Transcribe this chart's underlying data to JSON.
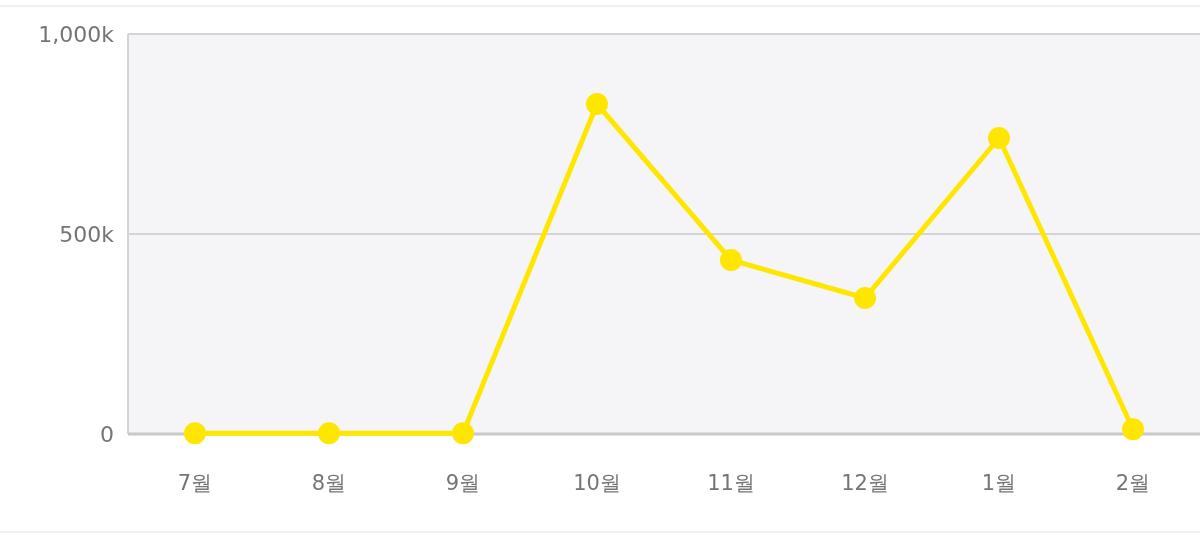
{
  "chart_data": {
    "type": "line",
    "categories": [
      "7월",
      "8월",
      "9월",
      "10월",
      "11월",
      "12월",
      "1월",
      "2월"
    ],
    "series": [
      {
        "color": "#ffe600",
        "values": [
          2000,
          2000,
          2000,
          825000,
          435000,
          340000,
          740000,
          12000
        ]
      }
    ],
    "ylim": [
      0,
      1000000
    ],
    "yticks": [
      0,
      {
        "value": 500000,
        "label": "500k"
      },
      {
        "value": 1000000,
        "label": "1,000k"
      }
    ],
    "grid": "y",
    "marker": "circle",
    "line_style": "solid"
  }
}
